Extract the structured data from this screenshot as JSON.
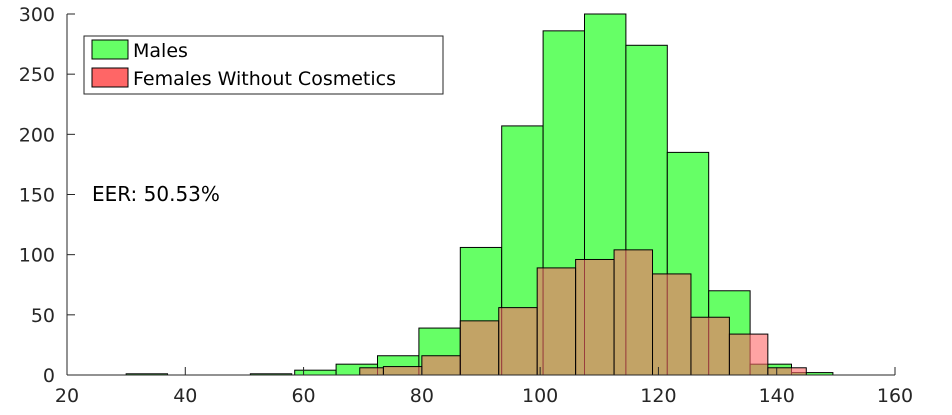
{
  "chart_data": {
    "type": "bar",
    "subtype": "overlapping-histogram",
    "title": "",
    "xlabel": "",
    "ylabel": "",
    "xlim": [
      20,
      160
    ],
    "ylim": [
      0,
      300
    ],
    "xticks": [
      20,
      40,
      60,
      80,
      100,
      120,
      140,
      160
    ],
    "yticks": [
      0,
      50,
      100,
      150,
      200,
      250,
      300
    ],
    "grid": false,
    "legend_position": "top-left",
    "annotation": "EER: 50.53%",
    "series": [
      {
        "name": "Males",
        "color": "#66ff66",
        "bins": [
          {
            "x0": 30.0,
            "x1": 37.0,
            "value": 1
          },
          {
            "x0": 51.0,
            "x1": 58.0,
            "value": 1
          },
          {
            "x0": 58.5,
            "x1": 65.5,
            "value": 4
          },
          {
            "x0": 65.5,
            "x1": 72.5,
            "value": 9
          },
          {
            "x0": 72.5,
            "x1": 79.5,
            "value": 16
          },
          {
            "x0": 79.5,
            "x1": 86.5,
            "value": 39
          },
          {
            "x0": 86.5,
            "x1": 93.5,
            "value": 106
          },
          {
            "x0": 93.5,
            "x1": 100.5,
            "value": 207
          },
          {
            "x0": 100.5,
            "x1": 107.5,
            "value": 286
          },
          {
            "x0": 107.5,
            "x1": 114.5,
            "value": 300
          },
          {
            "x0": 114.5,
            "x1": 121.5,
            "value": 274
          },
          {
            "x0": 121.5,
            "x1": 128.5,
            "value": 185
          },
          {
            "x0": 128.5,
            "x1": 135.5,
            "value": 70
          },
          {
            "x0": 135.5,
            "x1": 142.5,
            "value": 9
          },
          {
            "x0": 142.5,
            "x1": 149.5,
            "value": 2
          }
        ]
      },
      {
        "name": "Females Without Cosmetics",
        "color": "#ff6666",
        "bins": [
          {
            "x0": 69.5,
            "x1": 73.5,
            "value": 6
          },
          {
            "x0": 73.5,
            "x1": 80.0,
            "value": 7
          },
          {
            "x0": 80.0,
            "x1": 86.5,
            "value": 16
          },
          {
            "x0": 86.5,
            "x1": 93.0,
            "value": 45
          },
          {
            "x0": 93.0,
            "x1": 99.5,
            "value": 56
          },
          {
            "x0": 99.5,
            "x1": 106.0,
            "value": 89
          },
          {
            "x0": 106.0,
            "x1": 112.5,
            "value": 96
          },
          {
            "x0": 112.5,
            "x1": 119.0,
            "value": 104
          },
          {
            "x0": 119.0,
            "x1": 125.5,
            "value": 84
          },
          {
            "x0": 125.5,
            "x1": 132.0,
            "value": 48
          },
          {
            "x0": 132.0,
            "x1": 138.5,
            "value": 34
          },
          {
            "x0": 138.5,
            "x1": 145.0,
            "value": 6
          }
        ]
      }
    ]
  }
}
